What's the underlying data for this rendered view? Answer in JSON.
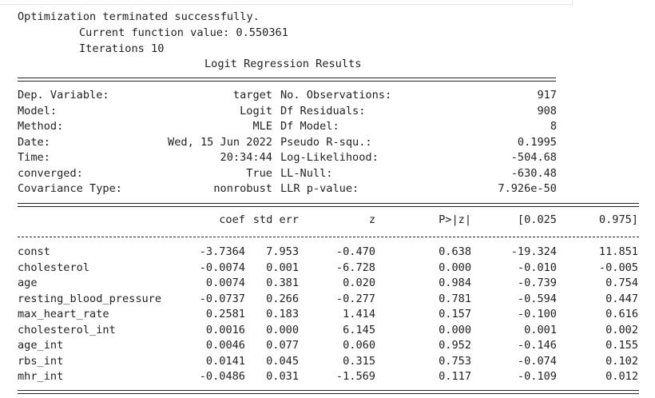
{
  "header": {
    "line1": "Optimization terminated successfully.",
    "line2": "Current function value: 0.550361",
    "line3": "Iterations 10",
    "title": "Logit Regression Results"
  },
  "info": {
    "left": [
      {
        "label": "Dep. Variable:",
        "value": "target"
      },
      {
        "label": "Model:",
        "value": "Logit"
      },
      {
        "label": "Method:",
        "value": "MLE"
      },
      {
        "label": "Date:",
        "value": "Wed, 15 Jun 2022"
      },
      {
        "label": "Time:",
        "value": "20:34:44"
      },
      {
        "label": "converged:",
        "value": "True"
      },
      {
        "label": "Covariance Type:",
        "value": "nonrobust"
      }
    ],
    "right": [
      {
        "label": "No. Observations:",
        "value": "917"
      },
      {
        "label": "Df Residuals:",
        "value": "908"
      },
      {
        "label": "Df Model:",
        "value": "8"
      },
      {
        "label": "Pseudo R-squ.:",
        "value": "0.1995"
      },
      {
        "label": "Log-Likelihood:",
        "value": "-504.68"
      },
      {
        "label": "LL-Null:",
        "value": "-630.48"
      },
      {
        "label": "LLR p-value:",
        "value": "7.926e-50"
      }
    ]
  },
  "coef_table": {
    "columns": [
      "coef",
      "std err",
      "z",
      "P>|z|",
      "[0.025",
      "0.975]"
    ],
    "rows": [
      {
        "name": "const",
        "vals": [
          "-3.7364",
          "7.953",
          "-0.470",
          "0.638",
          "-19.324",
          "11.851"
        ]
      },
      {
        "name": "cholesterol",
        "vals": [
          "-0.0074",
          "0.001",
          "-6.728",
          "0.000",
          "-0.010",
          "-0.005"
        ]
      },
      {
        "name": "age",
        "vals": [
          "0.0074",
          "0.381",
          "0.020",
          "0.984",
          "-0.739",
          "0.754"
        ]
      },
      {
        "name": "resting_blood_pressure",
        "vals": [
          "-0.0737",
          "0.266",
          "-0.277",
          "0.781",
          "-0.594",
          "0.447"
        ]
      },
      {
        "name": "max_heart_rate",
        "vals": [
          "0.2581",
          "0.183",
          "1.414",
          "0.157",
          "-0.100",
          "0.616"
        ]
      },
      {
        "name": "cholesterol_int",
        "vals": [
          "0.0016",
          "0.000",
          "6.145",
          "0.000",
          "0.001",
          "0.002"
        ]
      },
      {
        "name": "age_int",
        "vals": [
          "0.0046",
          "0.077",
          "0.060",
          "0.952",
          "-0.146",
          "0.155"
        ]
      },
      {
        "name": "rbs_int",
        "vals": [
          "0.0141",
          "0.045",
          "0.315",
          "0.753",
          "-0.074",
          "0.102"
        ]
      },
      {
        "name": "mhr_int",
        "vals": [
          "-0.0486",
          "0.031",
          "-1.569",
          "0.117",
          "-0.109",
          "0.012"
        ]
      }
    ]
  }
}
